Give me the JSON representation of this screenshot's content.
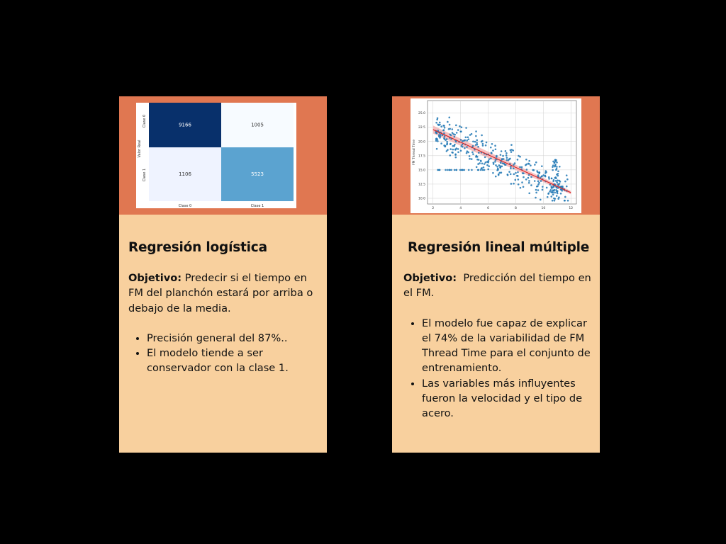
{
  "cards": [
    {
      "title": "Regresión logística",
      "objective_label": "Objetivo:",
      "objective_text": " Predecir si el tiempo en FM del planchón estará por arriba o debajo de la media.",
      "bullets": [
        "Precisión general del 87%..",
        "El modelo tiende a ser conservador con la clase 1."
      ]
    },
    {
      "title": "Regresión lineal múltiple",
      "objective_label": "Objetivo:",
      "objective_text": "  Predicción del tiempo en el FM.",
      "bullets": [
        "El modelo fue capaz de explicar el 74% de la variabilidad de FM Thread Time para el conjunto de entrenamiento.",
        "Las variables más influyentes fueron la velocidad y el tipo de acero."
      ]
    }
  ],
  "colors": {
    "background": "#000000",
    "card_top": "#e07751",
    "card_body": "#f8d09e",
    "regression_line": "#d62728",
    "points": "#1f77b4"
  },
  "chart_data": [
    {
      "type": "heatmap",
      "ylabel": "Valor Real",
      "row_labels": [
        "Clase 0",
        "Clase 1"
      ],
      "col_labels": [
        "Clase 0",
        "Clase 1"
      ],
      "values": [
        [
          9166,
          1005
        ],
        [
          1106,
          5523
        ]
      ],
      "cell_colors": [
        [
          "#08306b",
          "#f7fbff"
        ],
        [
          "#eff3ff",
          "#5ba3d0"
        ]
      ]
    },
    {
      "type": "scatter",
      "ylabel": "FM Thread Time",
      "xlim": [
        1.6,
        12.4
      ],
      "ylim": [
        9,
        27.2
      ],
      "xticks": [
        2,
        4,
        6,
        8,
        10,
        12
      ],
      "yticks": [
        10.0,
        12.5,
        15.0,
        17.5,
        20.0,
        22.5,
        25.0
      ],
      "grid": true,
      "fit_line": {
        "x": [
          2,
          12
        ],
        "y": [
          22.1,
          11.0
        ]
      }
    }
  ]
}
